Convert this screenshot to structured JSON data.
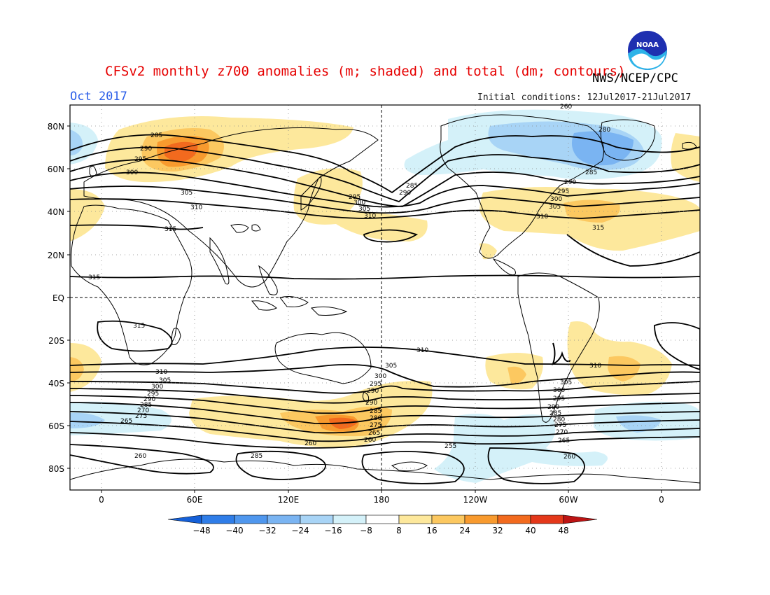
{
  "title": "CFSv2 monthly z700 anomalies (m; shaded) and total (dm; contours)",
  "agency": "NWS/NCEP/CPC",
  "logo_text": "NOAA",
  "month": "Oct 2017",
  "initial_conditions": "Initial conditions: 12Jul2017-21Jul2017",
  "lat_labels": [
    "80N",
    "60N",
    "40N",
    "20N",
    "EQ",
    "20S",
    "40S",
    "60S",
    "80S"
  ],
  "lon_labels": [
    "0",
    "60E",
    "120E",
    "180",
    "120W",
    "60W",
    "0"
  ],
  "colorbar": {
    "ticks": [
      "−48",
      "−40",
      "−32",
      "−24",
      "−16",
      "−8",
      "8",
      "16",
      "24",
      "32",
      "40",
      "48"
    ],
    "colors": [
      "#1560d8",
      "#2f7de8",
      "#4f97ee",
      "#7ab4f2",
      "#a8d4f6",
      "#d4f1f9",
      "#ffffff",
      "#fde89c",
      "#fcc860",
      "#f89a2e",
      "#f26a1e",
      "#e4381a",
      "#bd1414"
    ]
  },
  "contour_labels": [
    "260",
    "280",
    "285",
    "290",
    "295",
    "300",
    "305",
    "310",
    "315",
    "255",
    "270",
    "275",
    "265"
  ],
  "shading_legend": {
    "positive": [
      "#fde89c",
      "#fcc860",
      "#f89a2e",
      "#f26a1e"
    ],
    "negative": [
      "#d4f1f9",
      "#a8d4f6",
      "#7ab4f2",
      "#4f97ee"
    ]
  }
}
